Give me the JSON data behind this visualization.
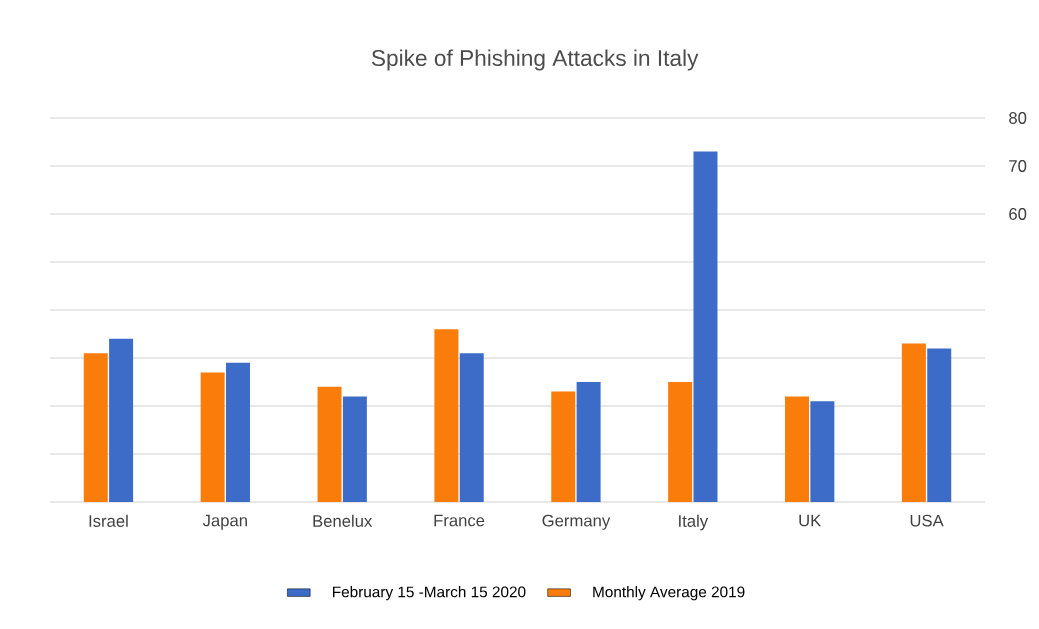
{
  "chart_data": {
    "type": "bar",
    "title": "Spike of Phishing Attacks in Italy",
    "categories": [
      "Israel",
      "Japan",
      "Benelux",
      "France",
      "Germany",
      "Italy",
      "UK",
      "USA"
    ],
    "series": [
      {
        "name": "Monthly Average 2019",
        "color": "#fa7d0c",
        "values": [
          31,
          27,
          24,
          36,
          23,
          25,
          22,
          33
        ]
      },
      {
        "name": "February 15 -March 15 2020",
        "color": "#3d6cc8",
        "values": [
          34,
          29,
          22,
          31,
          25,
          73,
          21,
          32
        ]
      }
    ],
    "ylim": [
      0,
      80
    ],
    "yticks": [
      {
        "value": 0,
        "label": null
      },
      {
        "value": 10,
        "label": null
      },
      {
        "value": 20,
        "label": null
      },
      {
        "value": 30,
        "label": null
      },
      {
        "value": 40,
        "label": null
      },
      {
        "value": 50,
        "label": null
      },
      60,
      70,
      80
    ],
    "grid": "y",
    "legend": "bottom"
  }
}
